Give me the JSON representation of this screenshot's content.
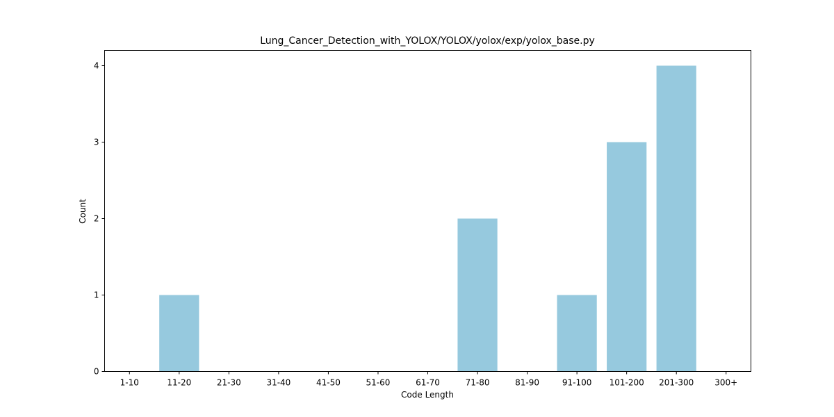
{
  "chart_data": {
    "type": "bar",
    "title": "Lung_Cancer_Detection_with_YOLOX/YOLOX/yolox/exp/yolox_base.py",
    "xlabel": "Code Length",
    "ylabel": "Count",
    "categories": [
      "1-10",
      "11-20",
      "21-30",
      "31-40",
      "41-50",
      "51-60",
      "61-70",
      "71-80",
      "81-90",
      "91-100",
      "101-200",
      "201-300",
      "300+"
    ],
    "values": [
      0,
      1,
      0,
      0,
      0,
      0,
      0,
      2,
      0,
      1,
      3,
      4,
      0
    ],
    "ylim": [
      0,
      4.2
    ],
    "yticks": [
      "0",
      "1",
      "2",
      "3",
      "4"
    ],
    "bar_color": "#96c9de",
    "grid": false,
    "legend": "none"
  }
}
